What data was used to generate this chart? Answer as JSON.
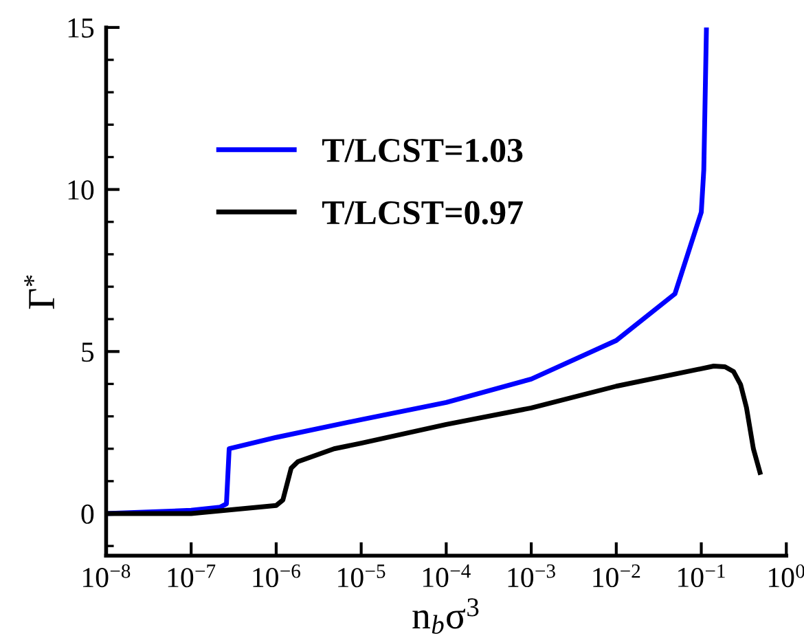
{
  "chart_data": {
    "type": "line",
    "xlabel": "n$_{b}$σ$^{3}$",
    "ylabel": "Γ$^{*}$",
    "log": "x",
    "xlim": [
      1e-08,
      1
    ],
    "ylim": [
      -1.3,
      15
    ],
    "xticks": [
      {
        "value": 1e-08,
        "label": "10$^{−8}$"
      },
      {
        "value": 1e-07,
        "label": "10$^{−7}$"
      },
      {
        "value": 1e-06,
        "label": "10$^{−6}$"
      },
      {
        "value": 1e-05,
        "label": "10$^{−5}$"
      },
      {
        "value": 0.0001,
        "label": "10$^{−4}$"
      },
      {
        "value": 0.001,
        "label": "10$^{−3}$"
      },
      {
        "value": 0.01,
        "label": "10$^{−2}$"
      },
      {
        "value": 0.1,
        "label": "10$^{−1}$"
      },
      {
        "value": 1,
        "label": "10$^{0}$"
      }
    ],
    "yticks": [
      0,
      5,
      10,
      15
    ],
    "grid": false,
    "legend": "top left",
    "line_style": "solid",
    "marker": "none",
    "series": [
      {
        "name": "T/LCST=1.03",
        "color": "#0000ff",
        "x": [
          1e-08,
          1e-07,
          2.2e-07,
          2.6e-07,
          2.8e-07,
          1e-06,
          1e-05,
          0.0001,
          0.001,
          0.01,
          0.049,
          0.1,
          0.107,
          0.115
        ],
        "values": [
          0,
          0.1,
          0.2,
          0.3,
          2.0,
          2.35,
          2.9,
          3.43,
          4.15,
          5.34,
          6.78,
          9.3,
          10.6,
          15
        ]
      },
      {
        "name": "T/LCST=0.97",
        "color": "#000000",
        "x": [
          1e-08,
          1e-07,
          1e-06,
          1.2e-06,
          1.5e-06,
          1.8e-06,
          4.8e-06,
          1e-05,
          0.0001,
          0.001,
          0.01,
          0.14,
          0.19,
          0.24,
          0.29,
          0.34,
          0.41,
          0.49
        ],
        "values": [
          0,
          0,
          0.25,
          0.42,
          1.4,
          1.6,
          2.0,
          2.17,
          2.75,
          3.26,
          3.93,
          4.55,
          4.53,
          4.38,
          3.98,
          3.27,
          2.0,
          1.27
        ]
      }
    ]
  }
}
